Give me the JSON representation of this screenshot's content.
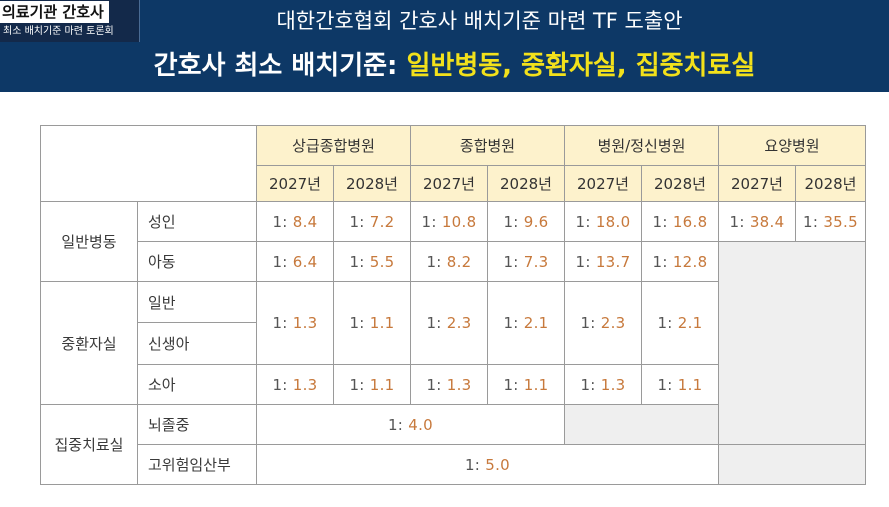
{
  "channel": {
    "title": "의료기관 간호사",
    "subtitle": "최소 배치기준 마련 토론회"
  },
  "header": {
    "title": "대한간호협회 간호사 배치기준 마련 TF 도출안",
    "subtitle_lead": "간호사 최소 배치기준: ",
    "subtitle_highlight": "일반병동, 중환자실, 집중치료실"
  },
  "colors": {
    "banner_bg": "#0d3866",
    "highlight": "#f2e11b",
    "header_cell_bg": "#fdf2cc",
    "value_text": "#c7793c",
    "blank_cell_bg": "#efefef"
  },
  "table": {
    "hospital_types": [
      "상급종합병원",
      "종합병원",
      "병원/정신병원",
      "요양병원"
    ],
    "years": [
      "2027년",
      "2028년",
      "2027년",
      "2028년",
      "2027년",
      "2028년",
      "2027년",
      "2028년"
    ],
    "ratio_prefix": "1:",
    "categories": {
      "general_ward": "일반병동",
      "icu": "중환자실",
      "intensive_unit": "집중치료실"
    },
    "rows": {
      "adult": {
        "label": "성인",
        "values": [
          "8.4",
          "7.2",
          "10.8",
          "9.6",
          "18.0",
          "16.8",
          "38.4",
          "35.5"
        ]
      },
      "child": {
        "label": "아동",
        "values": [
          "6.4",
          "5.5",
          "8.2",
          "7.3",
          "13.7",
          "12.8"
        ]
      },
      "icu_general": {
        "label": "일반"
      },
      "icu_newborn": {
        "label": "신생아"
      },
      "icu_merged_values": [
        "1.3",
        "1.1",
        "2.3",
        "2.1",
        "2.3",
        "2.1"
      ],
      "icu_pediatric": {
        "label": "소아",
        "values": [
          "1.3",
          "1.1",
          "1.3",
          "1.1",
          "1.3",
          "1.1"
        ]
      },
      "stroke": {
        "label": "뇌졸중",
        "value": "4.0"
      },
      "high_risk_maternity": {
        "label": "고위험임산부",
        "value": "5.0"
      }
    }
  }
}
